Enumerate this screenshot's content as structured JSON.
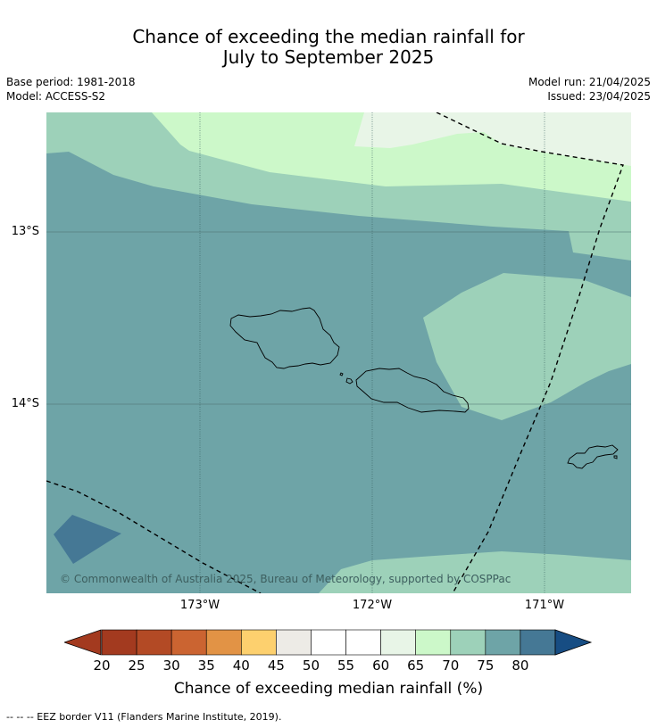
{
  "title": {
    "line1": "Chance of exceeding the median rainfall for",
    "line2": "July to September 2025"
  },
  "meta": {
    "base_period": "Base period: 1981-2018",
    "model": "Model: ACCESS-S2",
    "model_run": "Model run: 21/04/2025",
    "issued": "Issued: 23/04/2025"
  },
  "map": {
    "lat_labels": [
      "13°S",
      "14°S"
    ],
    "lon_labels": [
      "173°W",
      "172°W",
      "171°W"
    ],
    "copyright": "© Commonwealth of Australia 2025, Bureau of Meteorology, supported by COSPPac",
    "colors": {
      "c60_65": "#ccf8c9",
      "c65_70": "#9dd1b9",
      "c70_75": "#6ea4a7",
      "c75_80": "#457895",
      "c55_60": "#e8f5e7"
    }
  },
  "colorbar": {
    "ticks": [
      "20",
      "25",
      "30",
      "35",
      "40",
      "45",
      "50",
      "55",
      "60",
      "65",
      "70",
      "75",
      "80"
    ],
    "colors": [
      "#a33a1f",
      "#b34a25",
      "#cb6431",
      "#e29345",
      "#fdd06e",
      "#edebe6",
      "#ffffff",
      "#ffffff",
      "#e8f5e7",
      "#ccf8c9",
      "#9dd1b9",
      "#6ea4a7",
      "#457895"
    ],
    "low_extend_color": "#a33a1f",
    "high_extend_color": "#174d83",
    "label": "Chance of exceeding median rainfall (%)"
  },
  "footnote": "--  --  -- EEZ border V11 (Flanders Marine Institute, 2019)."
}
